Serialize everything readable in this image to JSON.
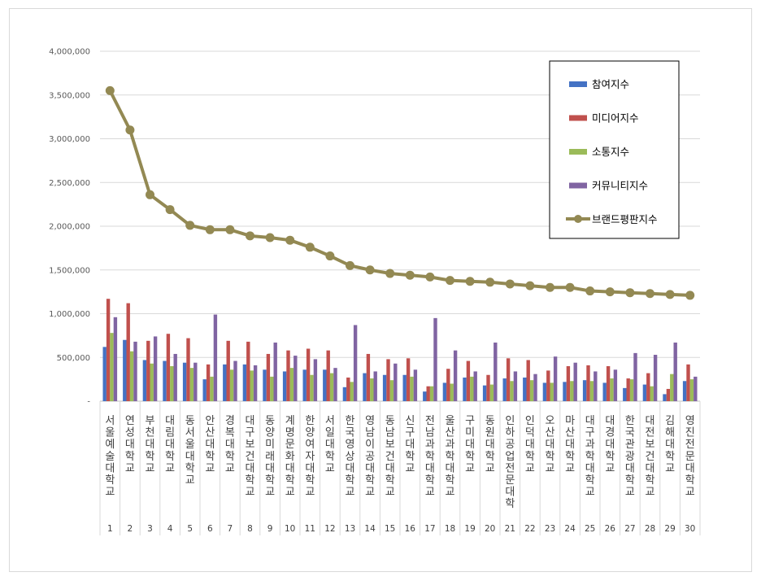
{
  "chart_data": {
    "type": "bar",
    "categories": [
      "서울예술대학교",
      "연성대학교",
      "부천대학교",
      "대림대학교",
      "동서울대학교",
      "안산대학교",
      "경복대학교",
      "대구보건대학교",
      "동양미래대학교",
      "계명문화대학교",
      "한양여자대학교",
      "서일대학교",
      "한국영상대학교",
      "영남이공대학교",
      "동남보건대학교",
      "신구대학교",
      "전남과학대학교",
      "울산과학대학교",
      "구미대학교",
      "동원대학교",
      "인하공업전문대학",
      "인덕대학교",
      "오산대학교",
      "마산대학교",
      "대구과학대학교",
      "대경대학교",
      "한국관광대학교",
      "대전보건대학교",
      "김해대학교",
      "영진전문대학교"
    ],
    "ranks": [
      "1",
      "2",
      "3",
      "4",
      "5",
      "6",
      "7",
      "8",
      "9",
      "10",
      "11",
      "12",
      "13",
      "14",
      "15",
      "16",
      "17",
      "18",
      "19",
      "20",
      "21",
      "22",
      "23",
      "24",
      "25",
      "26",
      "27",
      "28",
      "29",
      "30"
    ],
    "series": [
      {
        "name": "참여지수",
        "type": "bar",
        "color": "#4472c4",
        "values": [
          620000,
          700000,
          470000,
          460000,
          440000,
          250000,
          420000,
          420000,
          360000,
          340000,
          360000,
          360000,
          160000,
          320000,
          300000,
          300000,
          110000,
          210000,
          270000,
          180000,
          260000,
          270000,
          210000,
          220000,
          240000,
          210000,
          150000,
          190000,
          80000,
          230000
        ]
      },
      {
        "name": "미디어지수",
        "type": "bar",
        "color": "#c0504d",
        "values": [
          1170000,
          1120000,
          690000,
          770000,
          720000,
          420000,
          690000,
          680000,
          540000,
          580000,
          600000,
          580000,
          270000,
          540000,
          480000,
          490000,
          170000,
          370000,
          460000,
          300000,
          490000,
          470000,
          350000,
          400000,
          410000,
          400000,
          260000,
          320000,
          140000,
          420000
        ]
      },
      {
        "name": "소통지수",
        "type": "bar",
        "color": "#9bbb59",
        "values": [
          780000,
          570000,
          430000,
          400000,
          380000,
          280000,
          360000,
          350000,
          280000,
          380000,
          300000,
          320000,
          220000,
          260000,
          240000,
          280000,
          170000,
          200000,
          280000,
          190000,
          230000,
          240000,
          210000,
          230000,
          230000,
          260000,
          250000,
          170000,
          310000,
          250000
        ]
      },
      {
        "name": "커뮤니티지수",
        "type": "bar",
        "color": "#8064a2",
        "values": [
          960000,
          680000,
          740000,
          540000,
          440000,
          990000,
          460000,
          410000,
          670000,
          520000,
          480000,
          380000,
          870000,
          340000,
          430000,
          360000,
          950000,
          580000,
          340000,
          670000,
          340000,
          310000,
          510000,
          440000,
          340000,
          360000,
          550000,
          530000,
          670000,
          280000
        ]
      },
      {
        "name": "브랜드평판지수",
        "type": "line",
        "color": "#938953",
        "values": [
          3550000,
          3100000,
          2360000,
          2190000,
          2010000,
          1960000,
          1960000,
          1890000,
          1870000,
          1840000,
          1760000,
          1660000,
          1550000,
          1500000,
          1460000,
          1440000,
          1420000,
          1380000,
          1370000,
          1360000,
          1340000,
          1320000,
          1300000,
          1300000,
          1260000,
          1250000,
          1240000,
          1230000,
          1220000,
          1210000
        ]
      }
    ],
    "y_ticks": [
      "-",
      "500,000",
      "1,000,000",
      "1,500,000",
      "2,000,000",
      "2,500,000",
      "3,000,000",
      "3,500,000",
      "4,000,000"
    ],
    "ylim": [
      0,
      4000000
    ],
    "grid": true,
    "legend_position": "top-right"
  }
}
